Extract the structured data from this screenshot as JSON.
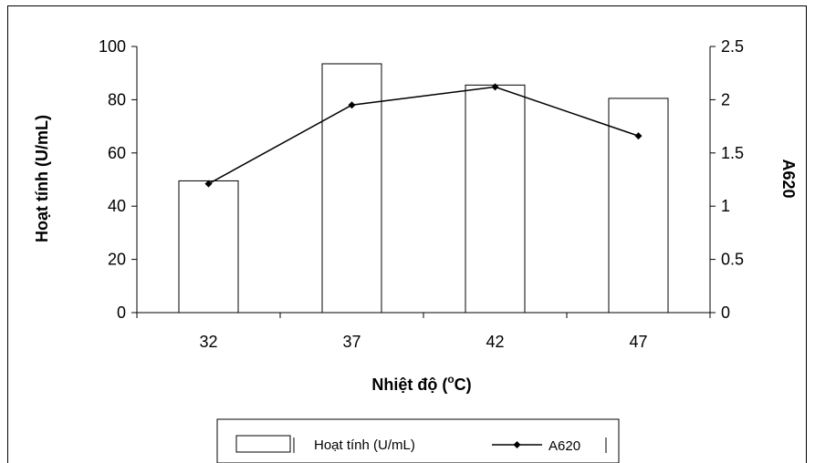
{
  "chart_data": {
    "type": "bar",
    "categories": [
      "32",
      "37",
      "42",
      "47"
    ],
    "series": [
      {
        "name": "Hoạt tính (U/mL)",
        "kind": "bar",
        "axis": "left",
        "values": [
          49.5,
          93.5,
          85.5,
          80.5
        ]
      },
      {
        "name": "A620",
        "kind": "line",
        "axis": "right",
        "values": [
          1.21,
          1.95,
          2.12,
          1.66
        ]
      }
    ],
    "xlabel": "Nhiệt độ (oC)",
    "xlabel_main": "Nhiệt độ (",
    "xlabel_sup": "o",
    "xlabel_end": "C)",
    "ylabel": "Hoạt tính (U/mL)",
    "ylabel_right": "A620",
    "ylim": [
      0,
      100
    ],
    "ylim_right": [
      0,
      2.5
    ],
    "yticks": [
      "0",
      "20",
      "40",
      "60",
      "80",
      "100"
    ],
    "yticks_right": [
      "0",
      "0.5",
      "1",
      "1.5",
      "2",
      "2.5"
    ],
    "grid": false,
    "legend_position": "bottom",
    "colors": {
      "bar_fill": "#ffffff",
      "bar_stroke": "#000000",
      "line": "#000000"
    }
  }
}
